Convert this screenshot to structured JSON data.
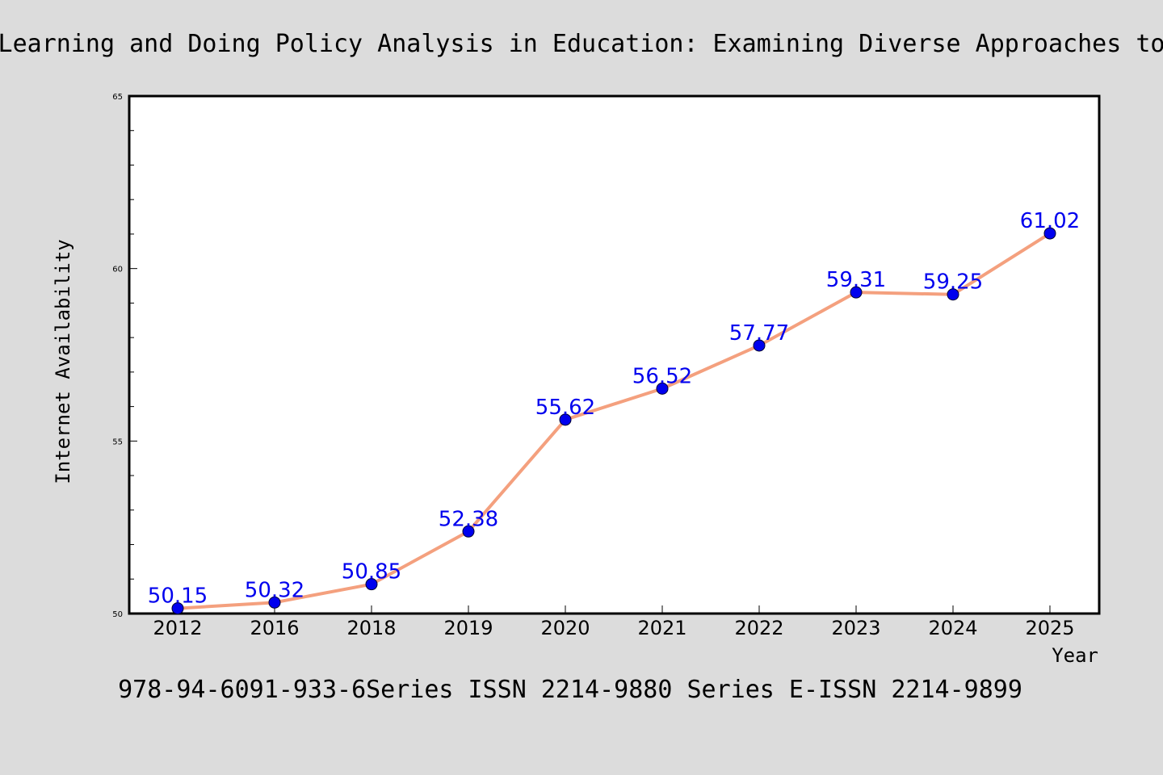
{
  "chart_data": {
    "type": "line",
    "title": "Learning and Doing Policy Analysis in Education: Examining Diverse Approaches to",
    "xlabel": "Year",
    "ylabel": "Internet Availability",
    "footer": "978-94-6091-933-6Series ISSN 2214-9880 Series E-ISSN 2214-9899",
    "categories": [
      "2012",
      "2016",
      "2018",
      "2019",
      "2020",
      "2021",
      "2022",
      "2023",
      "2024",
      "2025"
    ],
    "series": [
      {
        "values": [
          50.15,
          50.32,
          50.85,
          52.38,
          55.62,
          56.52,
          57.77,
          59.31,
          59.25,
          61.02
        ],
        "data_labels": [
          "50.15",
          "50.32",
          "50.85",
          "52.38",
          "55.62",
          "56.52",
          "57.77",
          "59.31",
          "59.25",
          "61.02"
        ],
        "line_color": "#f4a07e",
        "marker_color": "#0000ee",
        "label_color": "#0000ee"
      }
    ],
    "ylim": [
      50,
      65
    ],
    "yticks_major": [
      50,
      55,
      60,
      65
    ],
    "yticks_major_labels": [
      "50",
      "55",
      "60",
      "65"
    ],
    "yticks_minor_step": 1,
    "grid": false,
    "legend": "none"
  },
  "colors": {
    "background": "#dcdcdc",
    "plot_background": "#ffffff"
  }
}
